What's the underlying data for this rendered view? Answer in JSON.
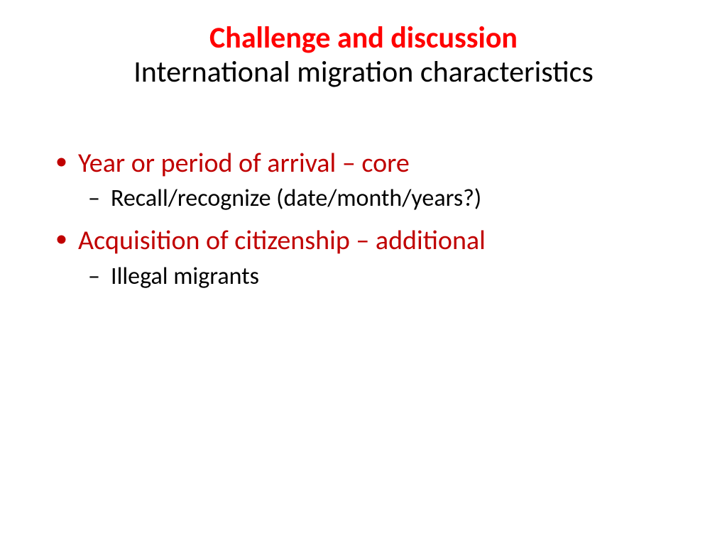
{
  "colors": {
    "accent_red": "#ff0000",
    "body_red": "#c00000",
    "text_black": "#000000",
    "background": "#ffffff"
  },
  "title": {
    "main": "Challenge and discussion",
    "sub": "International migration characteristics"
  },
  "bullets": [
    {
      "text": "Year or period of arrival – core",
      "sub": [
        {
          "text": "Recall/recognize (date/month/years?)"
        }
      ]
    },
    {
      "text": "Acquisition of citizenship – additional",
      "sub": [
        {
          "text": "Illegal migrants"
        }
      ]
    }
  ]
}
